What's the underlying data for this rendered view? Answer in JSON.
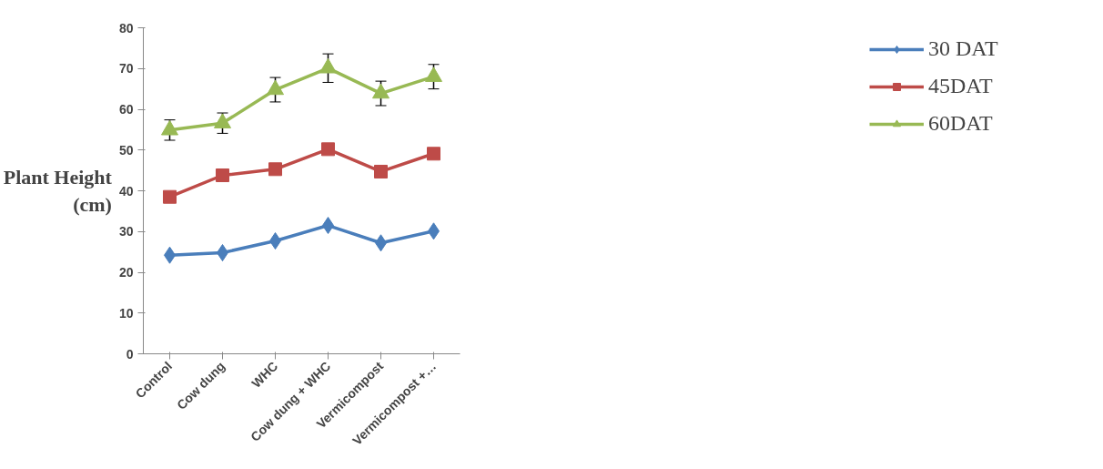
{
  "chart_data": {
    "type": "line",
    "ylabel": "Plant Height (cm)",
    "categories": [
      "Control",
      "Cow dung",
      "WHC",
      "Cow dung + WHC",
      "Vermicompost",
      "Vermicompost +…"
    ],
    "ylim": [
      0,
      80
    ],
    "yticks": [
      0,
      10,
      20,
      30,
      40,
      50,
      60,
      70,
      80
    ],
    "grid": false,
    "legend": "right",
    "line_style": "solid",
    "series": [
      {
        "name": "30 DAT",
        "color": "#4a7ebb",
        "marker": "diamond",
        "values": [
          24.2,
          24.8,
          27.7,
          31.5,
          27.2,
          30.1
        ]
      },
      {
        "name": "45DAT",
        "color": "#be4b48",
        "marker": "square",
        "values": [
          38.5,
          43.8,
          45.3,
          50.2,
          44.7,
          49.1
        ]
      },
      {
        "name": "60DAT",
        "color": "#98b954",
        "marker": "triangle",
        "values": [
          54.9,
          56.6,
          64.8,
          70.1,
          63.9,
          68.0
        ],
        "errors": [
          2.5,
          2.5,
          3,
          3.5,
          3,
          3
        ]
      }
    ]
  }
}
